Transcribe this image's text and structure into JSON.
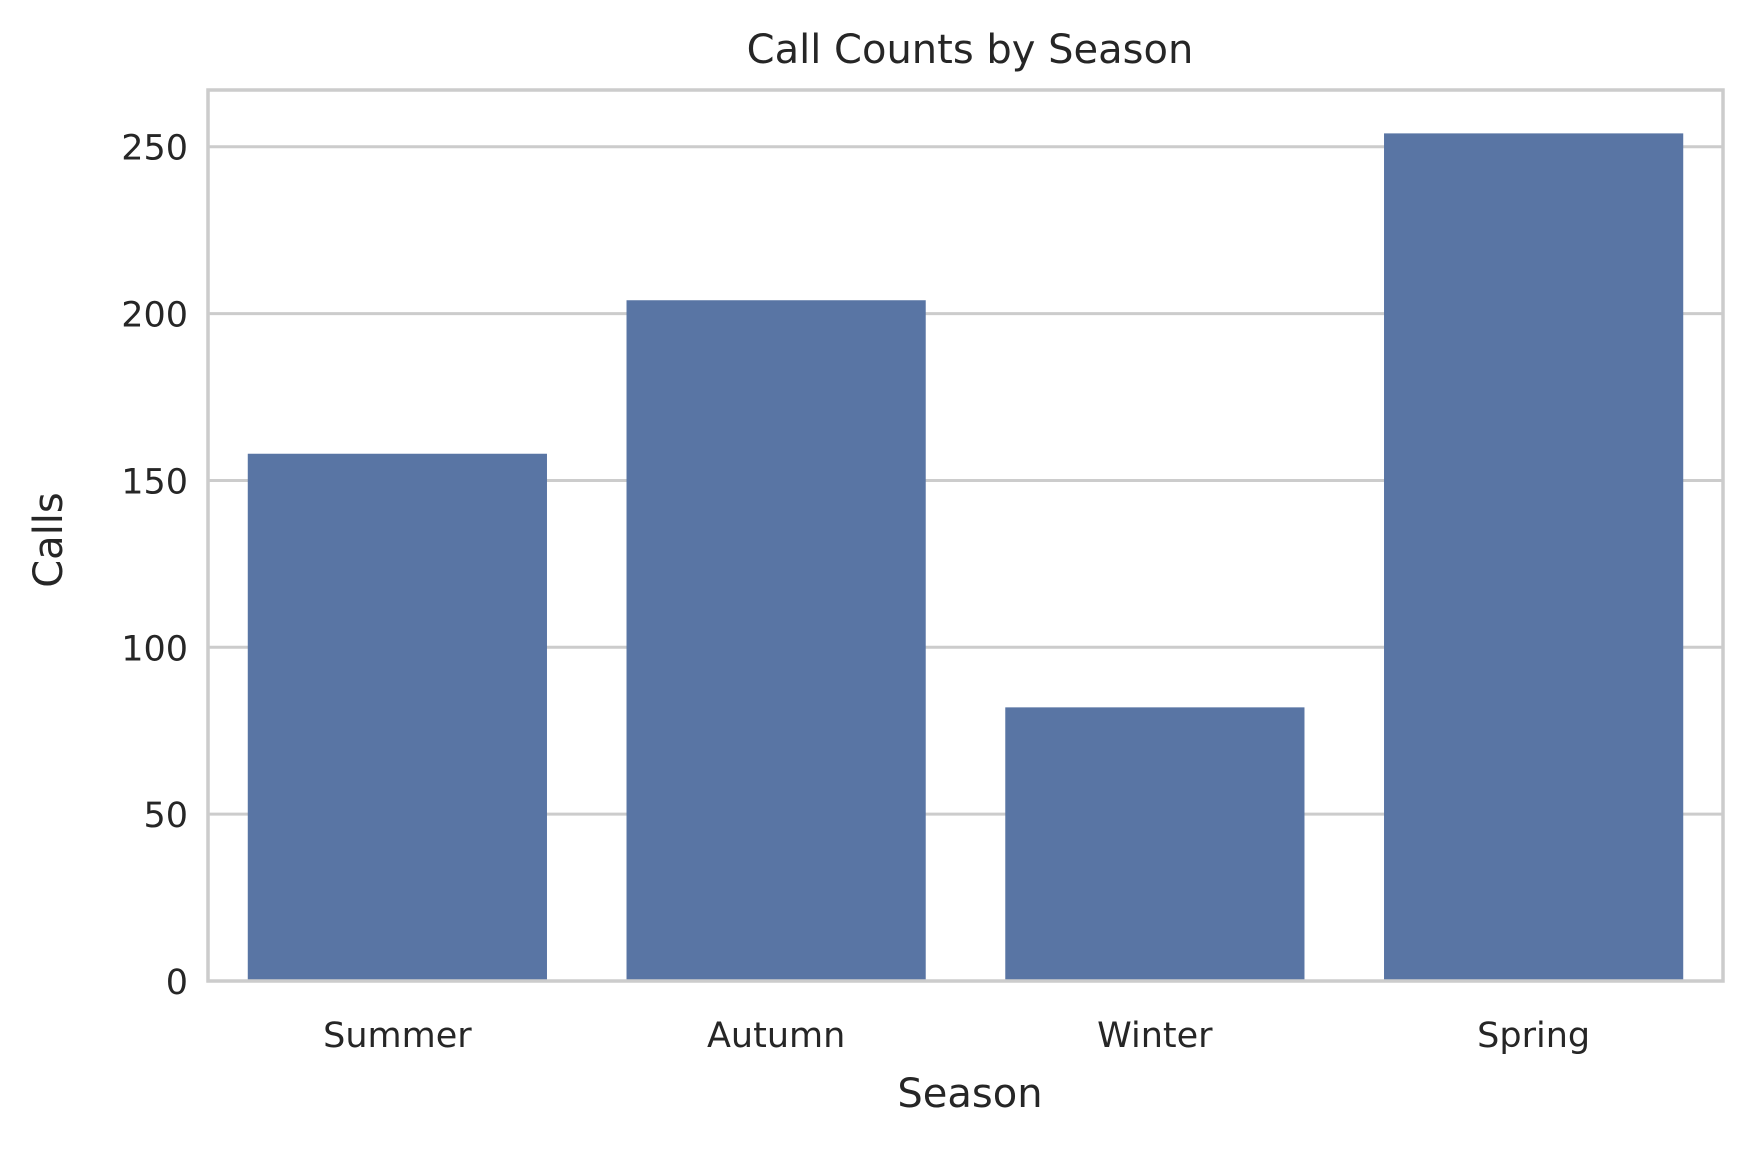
{
  "chart_data": {
    "type": "bar",
    "title": "Call Counts by Season",
    "xlabel": "Season",
    "ylabel": "Calls",
    "categories": [
      "Summer",
      "Autumn",
      "Winter",
      "Spring"
    ],
    "values": [
      158,
      204,
      82,
      254
    ],
    "ylim": [
      0,
      267
    ],
    "yticks": [
      0,
      50,
      100,
      150,
      200,
      250
    ],
    "grid": true,
    "legend": "none",
    "colors": {
      "bar": "#5975a4",
      "grid": "#cccccc",
      "frame": "#cccccc",
      "text": "#262626",
      "background": "#ffffff"
    }
  }
}
